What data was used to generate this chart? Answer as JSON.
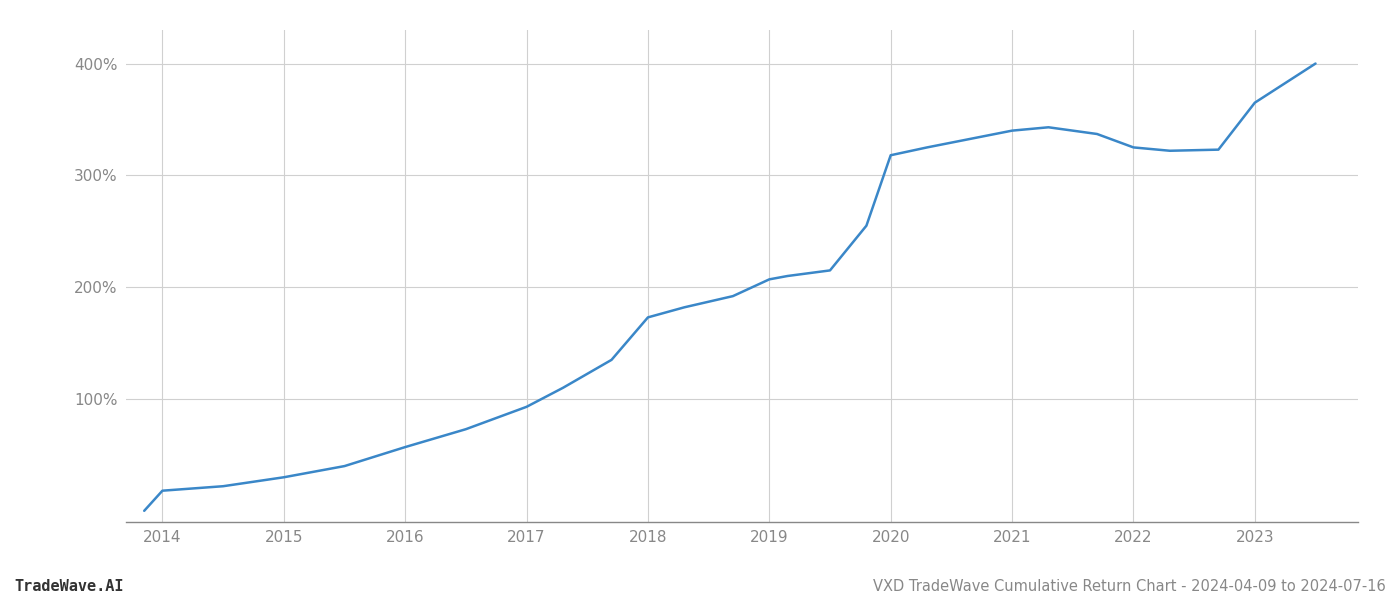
{
  "x_values": [
    2013.85,
    2014.0,
    2014.5,
    2015.0,
    2015.5,
    2016.0,
    2016.5,
    2017.0,
    2017.3,
    2017.7,
    2018.0,
    2018.3,
    2018.7,
    2019.0,
    2019.15,
    2019.5,
    2019.8,
    2020.0,
    2020.3,
    2021.0,
    2021.3,
    2021.7,
    2022.0,
    2022.3,
    2022.7,
    2023.0,
    2023.5
  ],
  "y_values": [
    0,
    18,
    22,
    30,
    40,
    57,
    73,
    93,
    110,
    135,
    173,
    182,
    192,
    207,
    210,
    215,
    255,
    318,
    325,
    340,
    343,
    337,
    325,
    322,
    323,
    365,
    400
  ],
  "line_color": "#3a87c8",
  "line_width": 1.8,
  "title": "VXD TradeWave Cumulative Return Chart - 2024-04-09 to 2024-07-16",
  "watermark": "TradeWave.AI",
  "xlim": [
    2013.7,
    2023.85
  ],
  "ylim": [
    -10,
    430
  ],
  "yticks": [
    100,
    200,
    300,
    400
  ],
  "ytick_labels": [
    "100%",
    "200%",
    "300%",
    "400%"
  ],
  "xticks": [
    2014,
    2015,
    2016,
    2017,
    2018,
    2019,
    2020,
    2021,
    2022,
    2023
  ],
  "grid_color": "#d0d0d0",
  "background_color": "#ffffff",
  "tick_color": "#888888",
  "title_fontsize": 10.5,
  "watermark_fontsize": 11,
  "axis_label_fontsize": 11,
  "figsize": [
    14.0,
    6.0
  ],
  "dpi": 100
}
